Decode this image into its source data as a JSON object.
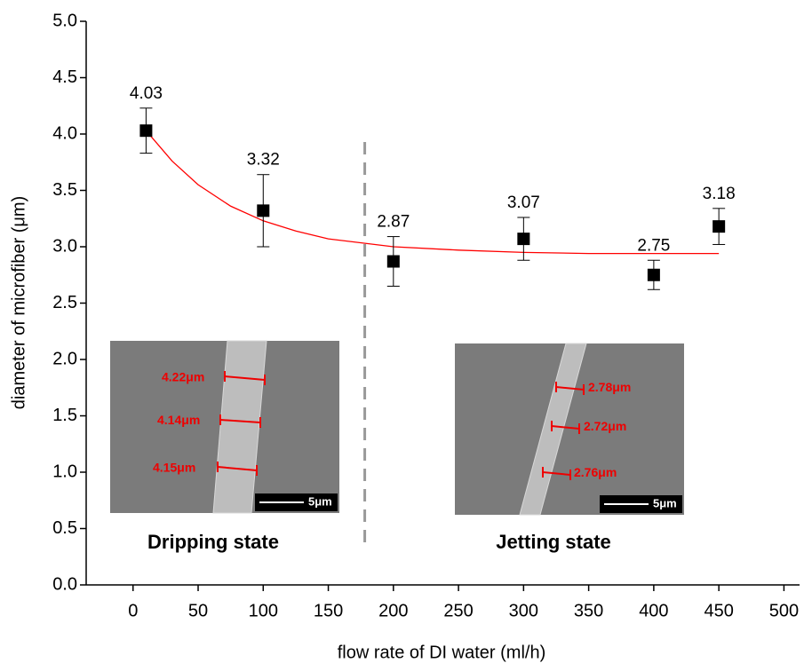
{
  "chart_data": {
    "type": "scatter",
    "xlabel": "flow rate of DI water (ml/h)",
    "ylabel": "diameter of microfiber (μm)",
    "xlim": [
      -36,
      512
    ],
    "ylim": [
      0,
      5
    ],
    "xticks": [
      0,
      50,
      100,
      150,
      200,
      250,
      300,
      350,
      400,
      450,
      500
    ],
    "yticks": [
      {
        "value": 0,
        "label": "0.0"
      },
      {
        "value": 0.5,
        "label": "0.5"
      },
      {
        "value": 1,
        "label": "1.0"
      },
      {
        "value": 1.5,
        "label": "1.5"
      },
      {
        "value": 2,
        "label": "2.0"
      },
      {
        "value": 2.5,
        "label": "2.5"
      },
      {
        "value": 3,
        "label": "3.0"
      },
      {
        "value": 3.5,
        "label": "3.5"
      },
      {
        "value": 4,
        "label": "4.0"
      },
      {
        "value": 4.5,
        "label": "4.5"
      },
      {
        "value": 5,
        "label": "5.0"
      }
    ],
    "series": [
      {
        "color": "#000000",
        "x": [
          10,
          100,
          200,
          300,
          400,
          450
        ],
        "values": [
          4.03,
          3.32,
          2.87,
          3.07,
          2.75,
          3.18
        ],
        "errors": [
          0.2,
          0.32,
          0.22,
          0.19,
          0.13,
          0.16
        ]
      }
    ],
    "fit": {
      "color": "#ff0000",
      "x": [
        10,
        30,
        50,
        75,
        100,
        125,
        150,
        200,
        250,
        300,
        350,
        400,
        450
      ],
      "values": [
        4.03,
        3.76,
        3.55,
        3.36,
        3.23,
        3.14,
        3.07,
        3.0,
        2.97,
        2.95,
        2.94,
        2.94,
        2.94
      ]
    },
    "divider_x": 178,
    "insets": [
      {
        "title": "Dripping state",
        "labels": [
          "4.22μm",
          "4.14μm",
          "4.15μm"
        ],
        "scale": "5μm"
      },
      {
        "title": "Jetting state",
        "labels": [
          "2.78μm",
          "2.72μm",
          "2.76μm"
        ],
        "scale": "5μm"
      }
    ]
  }
}
